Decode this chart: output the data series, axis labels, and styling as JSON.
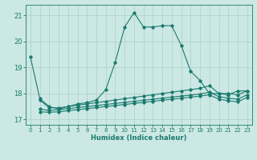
{
  "title": "",
  "xlabel": "Humidex (Indice chaleur)",
  "ylabel": "",
  "bg_color": "#cce8e4",
  "grid_color": "#aacfca",
  "line_color": "#1a7a6e",
  "xlim": [
    -0.5,
    23.5
  ],
  "ylim": [
    16.8,
    21.4
  ],
  "yticks": [
    17,
    18,
    19,
    20,
    21
  ],
  "xticks": [
    0,
    1,
    2,
    3,
    4,
    5,
    6,
    7,
    8,
    9,
    10,
    11,
    12,
    13,
    14,
    15,
    16,
    17,
    18,
    19,
    20,
    21,
    22,
    23
  ],
  "series": [
    [
      0,
      19.4
    ],
    [
      1,
      17.8
    ],
    [
      2,
      17.5
    ],
    [
      3,
      17.4
    ],
    [
      4,
      17.5
    ],
    [
      5,
      17.6
    ],
    [
      6,
      17.65
    ],
    [
      7,
      17.75
    ],
    [
      8,
      18.15
    ],
    [
      9,
      19.2
    ],
    [
      10,
      20.55
    ],
    [
      11,
      21.1
    ],
    [
      12,
      20.55
    ],
    [
      13,
      20.55
    ],
    [
      14,
      20.6
    ],
    [
      15,
      20.6
    ],
    [
      16,
      19.85
    ],
    [
      17,
      18.85
    ],
    [
      18,
      18.5
    ],
    [
      19,
      18.0
    ],
    [
      20,
      18.0
    ],
    [
      21,
      17.95
    ],
    [
      22,
      18.1
    ],
    [
      23,
      18.1
    ]
  ],
  "series2": [
    [
      1,
      17.75
    ],
    [
      2,
      17.45
    ],
    [
      3,
      17.45
    ],
    [
      4,
      17.5
    ],
    [
      5,
      17.55
    ],
    [
      6,
      17.6
    ],
    [
      7,
      17.65
    ],
    [
      8,
      17.7
    ],
    [
      9,
      17.75
    ],
    [
      10,
      17.8
    ],
    [
      11,
      17.85
    ],
    [
      12,
      17.9
    ],
    [
      13,
      17.95
    ],
    [
      14,
      18.0
    ],
    [
      15,
      18.05
    ],
    [
      16,
      18.1
    ],
    [
      17,
      18.15
    ],
    [
      18,
      18.2
    ],
    [
      19,
      18.3
    ],
    [
      20,
      18.0
    ],
    [
      21,
      18.0
    ],
    [
      22,
      17.95
    ],
    [
      23,
      18.1
    ]
  ],
  "series3": [
    [
      1,
      17.4
    ],
    [
      2,
      17.35
    ],
    [
      3,
      17.38
    ],
    [
      4,
      17.42
    ],
    [
      5,
      17.46
    ],
    [
      6,
      17.5
    ],
    [
      7,
      17.54
    ],
    [
      8,
      17.58
    ],
    [
      9,
      17.62
    ],
    [
      10,
      17.66
    ],
    [
      11,
      17.7
    ],
    [
      12,
      17.74
    ],
    [
      13,
      17.78
    ],
    [
      14,
      17.82
    ],
    [
      15,
      17.86
    ],
    [
      16,
      17.9
    ],
    [
      17,
      17.94
    ],
    [
      18,
      17.98
    ],
    [
      19,
      18.05
    ],
    [
      20,
      17.88
    ],
    [
      21,
      17.82
    ],
    [
      22,
      17.78
    ],
    [
      23,
      17.95
    ]
  ],
  "series4": [
    [
      1,
      17.3
    ],
    [
      2,
      17.28
    ],
    [
      3,
      17.3
    ],
    [
      4,
      17.34
    ],
    [
      5,
      17.38
    ],
    [
      6,
      17.42
    ],
    [
      7,
      17.46
    ],
    [
      8,
      17.5
    ],
    [
      9,
      17.54
    ],
    [
      10,
      17.58
    ],
    [
      11,
      17.62
    ],
    [
      12,
      17.66
    ],
    [
      13,
      17.7
    ],
    [
      14,
      17.74
    ],
    [
      15,
      17.78
    ],
    [
      16,
      17.82
    ],
    [
      17,
      17.86
    ],
    [
      18,
      17.9
    ],
    [
      19,
      17.95
    ],
    [
      20,
      17.78
    ],
    [
      21,
      17.72
    ],
    [
      22,
      17.68
    ],
    [
      23,
      17.85
    ]
  ]
}
